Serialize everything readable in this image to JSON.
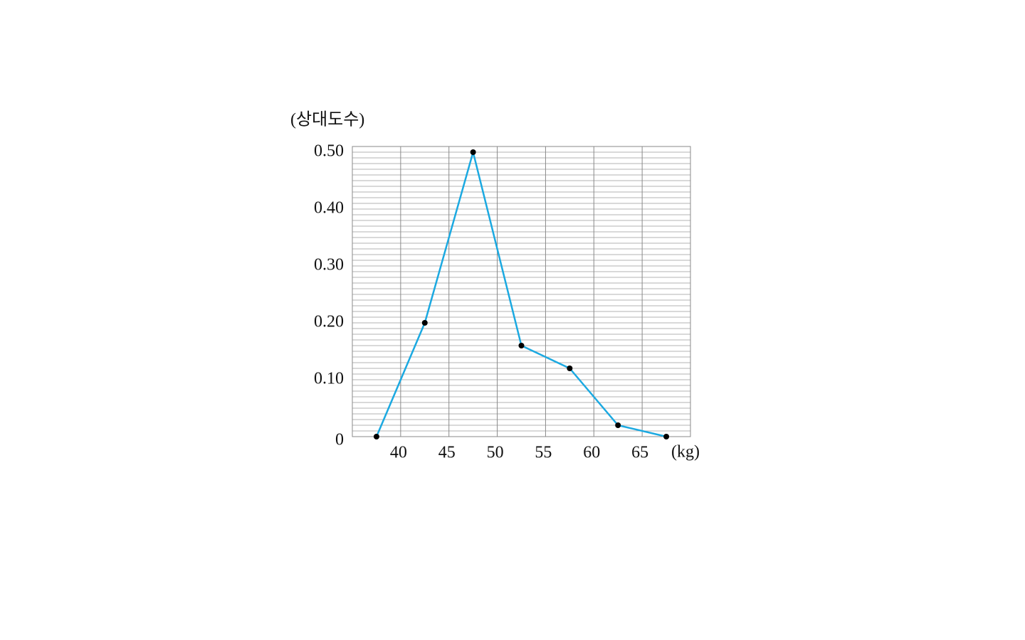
{
  "chart_data": {
    "type": "line",
    "y_axis_label": "(상대도수)",
    "x_axis_label": "(kg)",
    "x": [
      37.5,
      42.5,
      47.5,
      52.5,
      57.5,
      62.5,
      67.5
    ],
    "values": [
      0,
      0.2,
      0.5,
      0.16,
      0.12,
      0.02,
      0
    ],
    "color": "#1ba9e1",
    "marker_color": "#000000",
    "xlim": [
      35,
      70
    ],
    "ylim": [
      0,
      0.51
    ],
    "xticks": [
      40,
      45,
      50,
      55,
      60,
      65
    ],
    "yticks": [
      0,
      {
        "value": 0.1,
        "label": "0.10"
      },
      {
        "value": 0.2,
        "label": "0.20"
      },
      {
        "value": 0.3,
        "label": "0.30"
      },
      {
        "value": 0.4,
        "label": "0.40"
      },
      {
        "value": 0.5,
        "label": "0.50"
      }
    ],
    "y_minor_ticks": [
      0.01,
      0.02,
      0.03,
      0.04,
      0.05,
      0.06,
      0.07,
      0.08,
      0.09,
      0.11,
      0.12,
      0.13,
      0.14,
      0.15,
      0.16,
      0.17,
      0.18,
      0.19,
      0.21,
      0.22,
      0.23,
      0.24,
      0.25,
      0.26,
      0.27,
      0.28,
      0.29,
      0.31,
      0.32,
      0.33,
      0.34,
      0.35,
      0.36,
      0.37,
      0.38,
      0.39,
      0.41,
      0.42,
      0.43,
      0.44,
      0.45,
      0.46,
      0.47,
      0.48,
      0.49,
      0.51
    ],
    "grid": true
  }
}
